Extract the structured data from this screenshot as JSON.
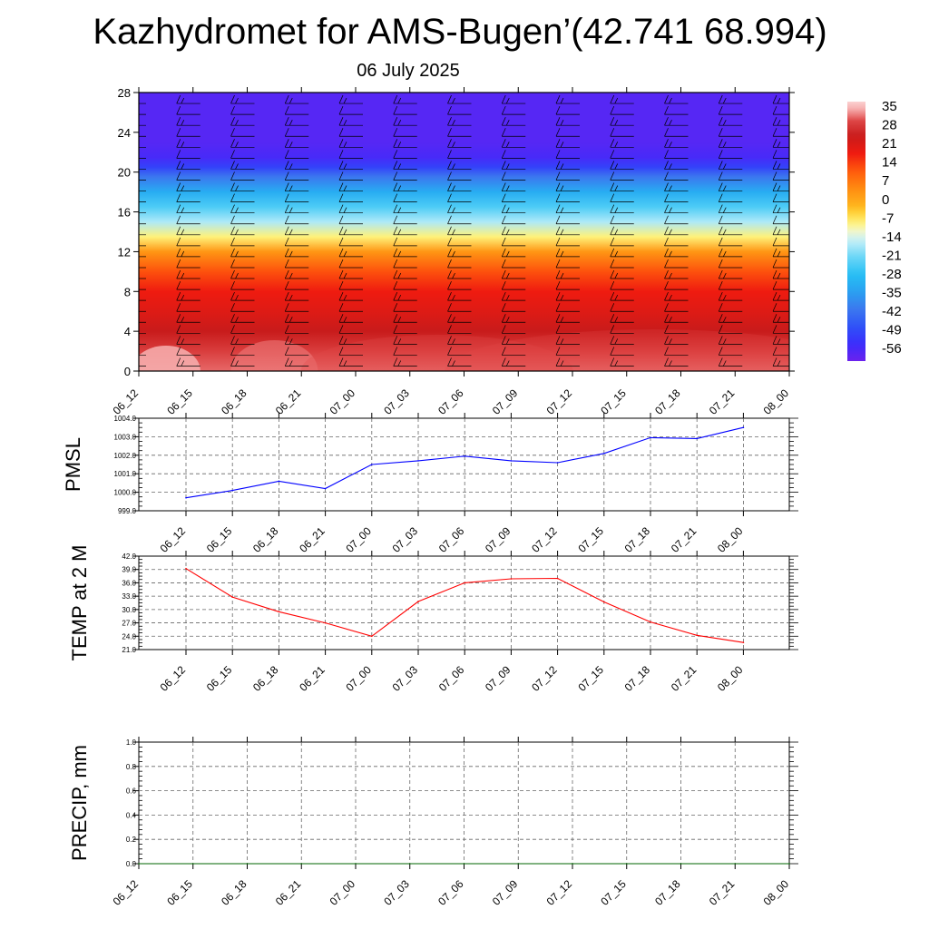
{
  "title": "Kazhydromet for AMS-Bugen’(42.741 68.994)",
  "subtitle": "06 July 2025",
  "chart_data": [
    {
      "type": "heatmap",
      "name": "temperature-height-section",
      "x_ticks": [
        "06_12",
        "06_15",
        "06_18",
        "06_21",
        "07_00",
        "07_03",
        "07_06",
        "07_09",
        "07_12",
        "07_15",
        "07_18",
        "07_21",
        "08_00"
      ],
      "ylim": [
        0,
        28
      ],
      "y_ticks": [
        0,
        4,
        8,
        12,
        16,
        20,
        24,
        28
      ],
      "colorbar_labels": [
        "35",
        "28",
        "21",
        "14",
        "7",
        "0",
        "-7",
        "-14",
        "-21",
        "-28",
        "-35",
        "-42",
        "-49",
        "-56"
      ],
      "colorbar_range": [
        -63,
        42
      ],
      "temperature_profile": {
        "heights": [
          0,
          2,
          4,
          6,
          8,
          10,
          12,
          13.5,
          15,
          16.5,
          18,
          19.5,
          20.5,
          21.5,
          23,
          25,
          28
        ],
        "temps": [
          36,
          33,
          28,
          24,
          21,
          15,
          5,
          -7,
          -16,
          -24,
          -32,
          -42,
          -52,
          -58,
          -60,
          -60,
          -60
        ]
      },
      "wind_barbs": true
    },
    {
      "type": "line",
      "name": "PMSL",
      "ylabel": "PMSL",
      "ylim": [
        999.0,
        1004.0
      ],
      "y_ticks": [
        "1004.0",
        "1003.0",
        "1002.0",
        "1001.0",
        "1000.0",
        "999.0"
      ],
      "categories": [
        "06_12",
        "06_15",
        "06_18",
        "06_21",
        "07_00",
        "07_03",
        "07_06",
        "07_09",
        "07_12",
        "07_15",
        "07_18",
        "07_21",
        "08_00"
      ],
      "values": [
        999.7,
        1000.1,
        1000.6,
        1000.2,
        1001.5,
        1001.7,
        1001.95,
        1001.7,
        1001.6,
        1002.1,
        1002.95,
        1002.9,
        1003.5
      ],
      "color": "#0000ff"
    },
    {
      "type": "line",
      "name": "TEMP at 2 M",
      "ylabel": "TEMP at 2 M",
      "ylim": [
        21.0,
        42.0
      ],
      "y_ticks": [
        "42.0",
        "39.0",
        "36.0",
        "33.0",
        "30.0",
        "27.0",
        "24.0",
        "21.0"
      ],
      "categories": [
        "06_12",
        "06_15",
        "06_18",
        "06_21",
        "07_00",
        "07_03",
        "07_06",
        "07_09",
        "07_12",
        "07_15",
        "07_18",
        "07_21",
        "08_00"
      ],
      "values": [
        39.2,
        32.8,
        29.5,
        27.0,
        24.0,
        31.8,
        36.0,
        36.9,
        37.0,
        31.7,
        27.2,
        24.2,
        22.6
      ],
      "color": "#ff0000"
    },
    {
      "type": "line",
      "name": "PRECIP, mm",
      "ylabel": "PRECIP, mm",
      "ylim": [
        0.0,
        1.0
      ],
      "y_ticks": [
        "1.0",
        "0.8",
        "0.6",
        "0.4",
        "0.2",
        "0.0"
      ],
      "categories": [
        "06_12",
        "06_15",
        "06_18",
        "06_21",
        "07_00",
        "07_03",
        "07_06",
        "07_09",
        "07_12",
        "07_15",
        "07_18",
        "07_21",
        "08_00"
      ],
      "values": [
        0,
        0,
        0,
        0,
        0,
        0,
        0,
        0,
        0,
        0,
        0,
        0,
        0
      ],
      "color": "#006400"
    }
  ]
}
